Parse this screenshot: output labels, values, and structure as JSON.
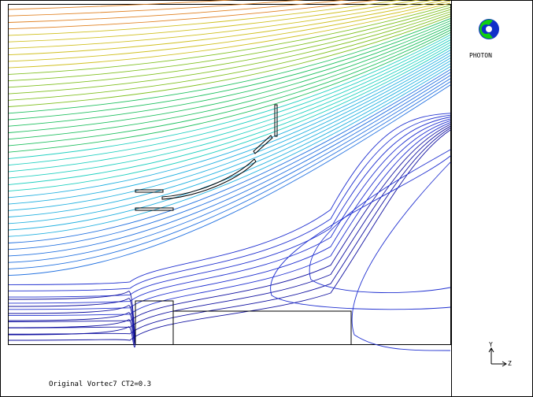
{
  "logo": {
    "brand": "PHOTON",
    "icon": "phoenics-logo-icon",
    "colors": {
      "blue": "#1030c8",
      "green": "#10d010"
    }
  },
  "caption": "Original Vortec7 CT2=0.3",
  "axes": {
    "vertical": "Y",
    "horizontal": "Z"
  },
  "streamlines": {
    "count": 52,
    "palette": [
      "#1010a0",
      "#2030d0",
      "#2070e0",
      "#20b0e0",
      "#20d0c0",
      "#20c060",
      "#80c020",
      "#d0c020",
      "#e08020"
    ]
  }
}
